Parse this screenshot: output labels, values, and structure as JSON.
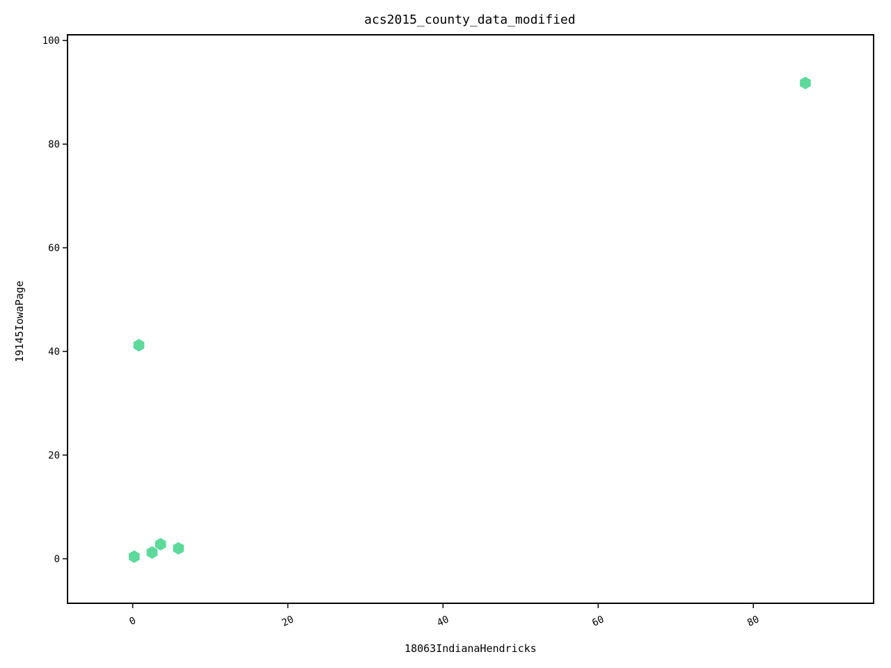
{
  "chart_data": {
    "type": "scatter",
    "title": "acs2015_county_data_modified",
    "xlabel": "18063IndianaHendricks",
    "ylabel": "19145IowaPage",
    "xlim": [
      -8.4,
      95.5
    ],
    "ylim": [
      -8.6,
      101.1
    ],
    "x_ticks": [
      0,
      20,
      40,
      60,
      80
    ],
    "y_ticks": [
      0,
      20,
      40,
      60,
      80,
      100
    ],
    "grid": false,
    "marker": "hexagon",
    "color": "#5cd99b",
    "points": [
      {
        "x": 0.2,
        "y": 0.4
      },
      {
        "x": 0.8,
        "y": 41.2
      },
      {
        "x": 2.5,
        "y": 1.2
      },
      {
        "x": 3.6,
        "y": 2.8
      },
      {
        "x": 5.9,
        "y": 2.0
      },
      {
        "x": 86.7,
        "y": 91.8
      }
    ]
  }
}
